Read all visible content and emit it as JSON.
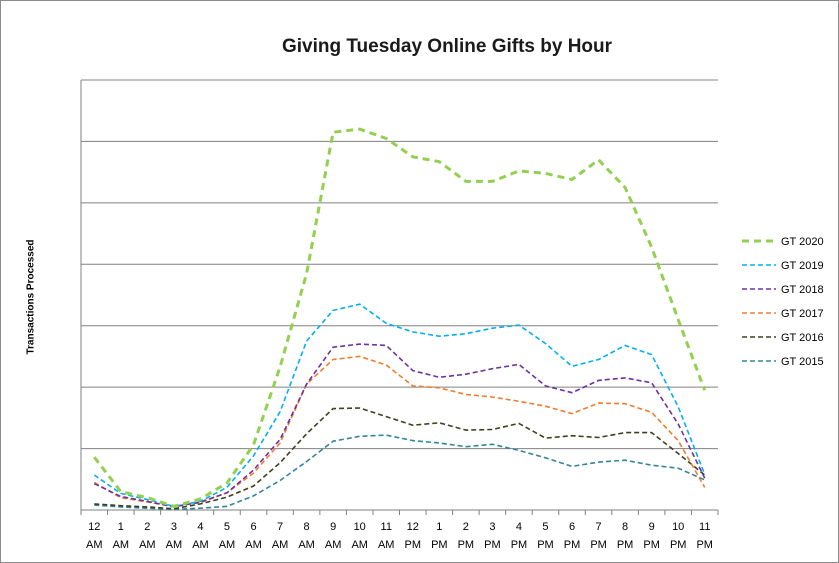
{
  "chart_data": {
    "type": "line",
    "title": "Giving Tuesday Online Gifts by Hour",
    "xlabel": "",
    "ylabel": "Transactions  Processed",
    "y_tick_labels_shown": false,
    "grid": "horizontal",
    "legend_position": "right",
    "x_tick_labels": [
      [
        "12",
        "AM"
      ],
      [
        "1",
        "AM"
      ],
      [
        "2",
        "AM"
      ],
      [
        "3",
        "AM"
      ],
      [
        "4",
        "AM"
      ],
      [
        "5",
        "AM"
      ],
      [
        "6",
        "AM"
      ],
      [
        "7",
        "AM"
      ],
      [
        "8",
        "AM"
      ],
      [
        "9",
        "AM"
      ],
      [
        "10",
        "AM"
      ],
      [
        "11",
        "AM"
      ],
      [
        "12",
        "PM"
      ],
      [
        "1",
        "PM"
      ],
      [
        "2",
        "PM"
      ],
      [
        "3",
        "PM"
      ],
      [
        "4",
        "PM"
      ],
      [
        "5",
        "PM"
      ],
      [
        "6",
        "PM"
      ],
      [
        "7",
        "PM"
      ],
      [
        "8",
        "PM"
      ],
      [
        "9",
        "PM"
      ],
      [
        "10",
        "PM"
      ],
      [
        "11",
        "PM"
      ]
    ],
    "ylim": [
      0,
      7
    ],
    "series": [
      {
        "name": "GT 2020",
        "color": "#92d050",
        "values": [
          0.86,
          0.3,
          0.2,
          0.06,
          0.18,
          0.44,
          1.06,
          2.33,
          3.85,
          6.15,
          6.2,
          6.05,
          5.75,
          5.67,
          5.35,
          5.35,
          5.52,
          5.48,
          5.38,
          5.7,
          5.25,
          4.28,
          3.1,
          1.95
        ]
      },
      {
        "name": "GT 2019",
        "color": "#00b0f0",
        "values": [
          0.57,
          0.27,
          0.17,
          0.06,
          0.14,
          0.37,
          0.88,
          1.6,
          2.75,
          3.25,
          3.35,
          3.04,
          2.9,
          2.83,
          2.87,
          2.96,
          3.01,
          2.71,
          2.34,
          2.45,
          2.68,
          2.53,
          1.68,
          0.58
        ]
      },
      {
        "name": "GT 2018",
        "color": "#7030a0",
        "values": [
          0.43,
          0.22,
          0.14,
          0.05,
          0.13,
          0.28,
          0.65,
          1.15,
          2.05,
          2.65,
          2.7,
          2.68,
          2.27,
          2.16,
          2.21,
          2.3,
          2.37,
          2.02,
          1.91,
          2.11,
          2.15,
          2.07,
          1.4,
          0.52
        ]
      },
      {
        "name": "GT 2017",
        "color": "#ed7d31",
        "values": [
          0.45,
          0.2,
          0.13,
          0.06,
          0.12,
          0.28,
          0.6,
          1.09,
          2.05,
          2.45,
          2.5,
          2.36,
          2.02,
          1.99,
          1.88,
          1.84,
          1.77,
          1.69,
          1.57,
          1.74,
          1.73,
          1.59,
          1.13,
          0.37
        ]
      },
      {
        "name": "GT 2016",
        "color": "#404020",
        "values": [
          0.1,
          0.07,
          0.05,
          0.02,
          0.1,
          0.21,
          0.39,
          0.77,
          1.24,
          1.65,
          1.66,
          1.52,
          1.38,
          1.42,
          1.3,
          1.31,
          1.41,
          1.17,
          1.21,
          1.18,
          1.26,
          1.26,
          0.92,
          0.57
        ]
      },
      {
        "name": "GT 2015",
        "color": "#31859c",
        "values": [
          0.08,
          0.05,
          0.03,
          0.01,
          0.03,
          0.06,
          0.23,
          0.48,
          0.79,
          1.12,
          1.2,
          1.22,
          1.13,
          1.09,
          1.03,
          1.07,
          0.97,
          0.85,
          0.71,
          0.78,
          0.81,
          0.73,
          0.68,
          0.49
        ]
      }
    ]
  }
}
